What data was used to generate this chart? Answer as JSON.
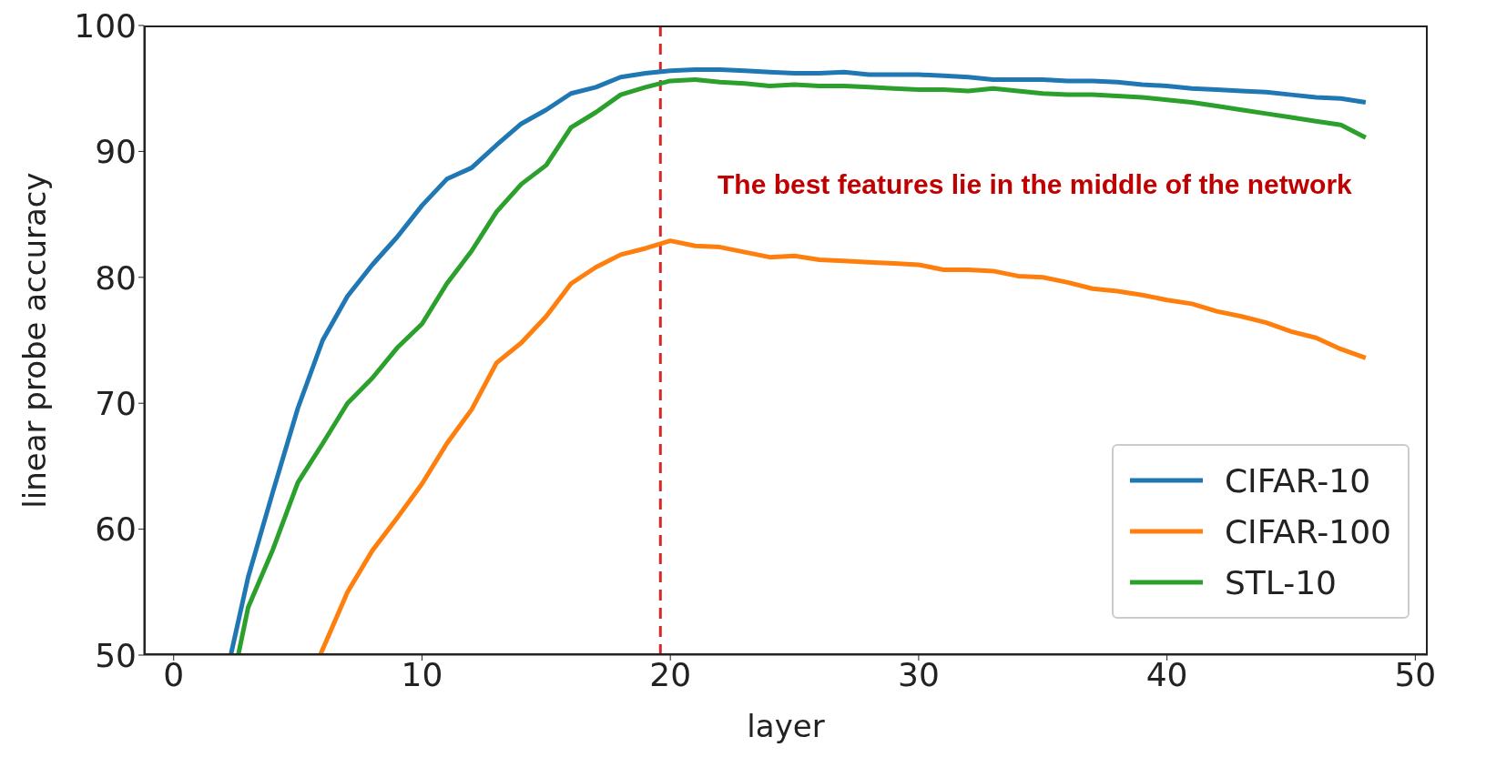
{
  "chart_data": {
    "type": "line",
    "xlabel": "layer",
    "ylabel": "linear probe accuracy",
    "xlim": [
      -1.2,
      50.5
    ],
    "ylim": [
      50,
      100
    ],
    "xticks": [
      0,
      10,
      20,
      30,
      40,
      50
    ],
    "yticks": [
      50,
      60,
      70,
      80,
      90,
      100
    ],
    "grid": false,
    "legend": "bottom right",
    "marker": "none",
    "line_style": "solid",
    "series": [
      {
        "name": "CIFAR-10",
        "color": "#1f77b4",
        "x": [
          2.3,
          3,
          4,
          5,
          6,
          7,
          8,
          9,
          10,
          11,
          12,
          13,
          14,
          15,
          16,
          17,
          18,
          19,
          20,
          21,
          22,
          23,
          24,
          25,
          26,
          27,
          28,
          29,
          30,
          31,
          32,
          33,
          34,
          35,
          36,
          37,
          38,
          39,
          40,
          41,
          42,
          43,
          44,
          45,
          46,
          47,
          48
        ],
        "values": [
          50,
          56.2,
          63,
          69.6,
          75,
          78.5,
          81,
          83.2,
          85.7,
          87.8,
          88.7,
          90.5,
          92.2,
          93.3,
          94.6,
          95.1,
          95.9,
          96.2,
          96.4,
          96.5,
          96.5,
          96.4,
          96.3,
          96.2,
          96.2,
          96.3,
          96.1,
          96.1,
          96.1,
          96,
          95.9,
          95.7,
          95.7,
          95.7,
          95.6,
          95.6,
          95.5,
          95.3,
          95.2,
          95,
          94.9,
          94.8,
          94.7,
          94.5,
          94.3,
          94.2,
          93.9
        ]
      },
      {
        "name": "CIFAR-100",
        "color": "#ff7f0e",
        "x": [
          5.9,
          7,
          8,
          9,
          10,
          11,
          12,
          13,
          14,
          15,
          16,
          17,
          18,
          19,
          20,
          21,
          22,
          23,
          24,
          25,
          26,
          27,
          28,
          29,
          30,
          31,
          32,
          33,
          34,
          35,
          36,
          37,
          38,
          39,
          40,
          41,
          42,
          43,
          44,
          45,
          46,
          47,
          48
        ],
        "values": [
          50,
          55,
          58.3,
          60.9,
          63.6,
          66.8,
          69.5,
          73.2,
          74.8,
          76.9,
          79.5,
          80.8,
          81.8,
          82.3,
          82.9,
          82.5,
          82.4,
          82,
          81.6,
          81.7,
          81.4,
          81.3,
          81.2,
          81.1,
          81,
          80.6,
          80.6,
          80.5,
          80.1,
          80,
          79.6,
          79.1,
          78.9,
          78.6,
          78.2,
          77.9,
          77.3,
          76.9,
          76.4,
          75.7,
          75.2,
          74.3,
          73.6
        ]
      },
      {
        "name": "STL-10",
        "color": "#2ca02c",
        "x": [
          2.6,
          3,
          4,
          5,
          6,
          7,
          8,
          9,
          10,
          11,
          12,
          13,
          14,
          15,
          16,
          17,
          18,
          19,
          20,
          21,
          22,
          23,
          24,
          25,
          26,
          27,
          28,
          29,
          30,
          31,
          32,
          33,
          34,
          35,
          36,
          37,
          38,
          39,
          40,
          41,
          42,
          43,
          44,
          45,
          46,
          47,
          48
        ],
        "values": [
          50,
          53.8,
          58.4,
          63.7,
          66.8,
          70,
          72,
          74.4,
          76.3,
          79.5,
          82.1,
          85.2,
          87.4,
          88.9,
          91.9,
          93.1,
          94.5,
          95.1,
          95.6,
          95.7,
          95.5,
          95.4,
          95.2,
          95.3,
          95.2,
          95.2,
          95.1,
          95,
          94.9,
          94.9,
          94.8,
          95,
          94.8,
          94.6,
          94.5,
          94.5,
          94.4,
          94.3,
          94.1,
          93.9,
          93.6,
          93.3,
          93,
          92.7,
          92.4,
          92.1,
          91.1
        ]
      }
    ],
    "ref_lines": [
      {
        "axis": "x",
        "value": 19.6,
        "color": "#d62728",
        "line_style": "dashed"
      }
    ],
    "annotations": [
      "The best features lie in the middle of the network"
    ]
  }
}
